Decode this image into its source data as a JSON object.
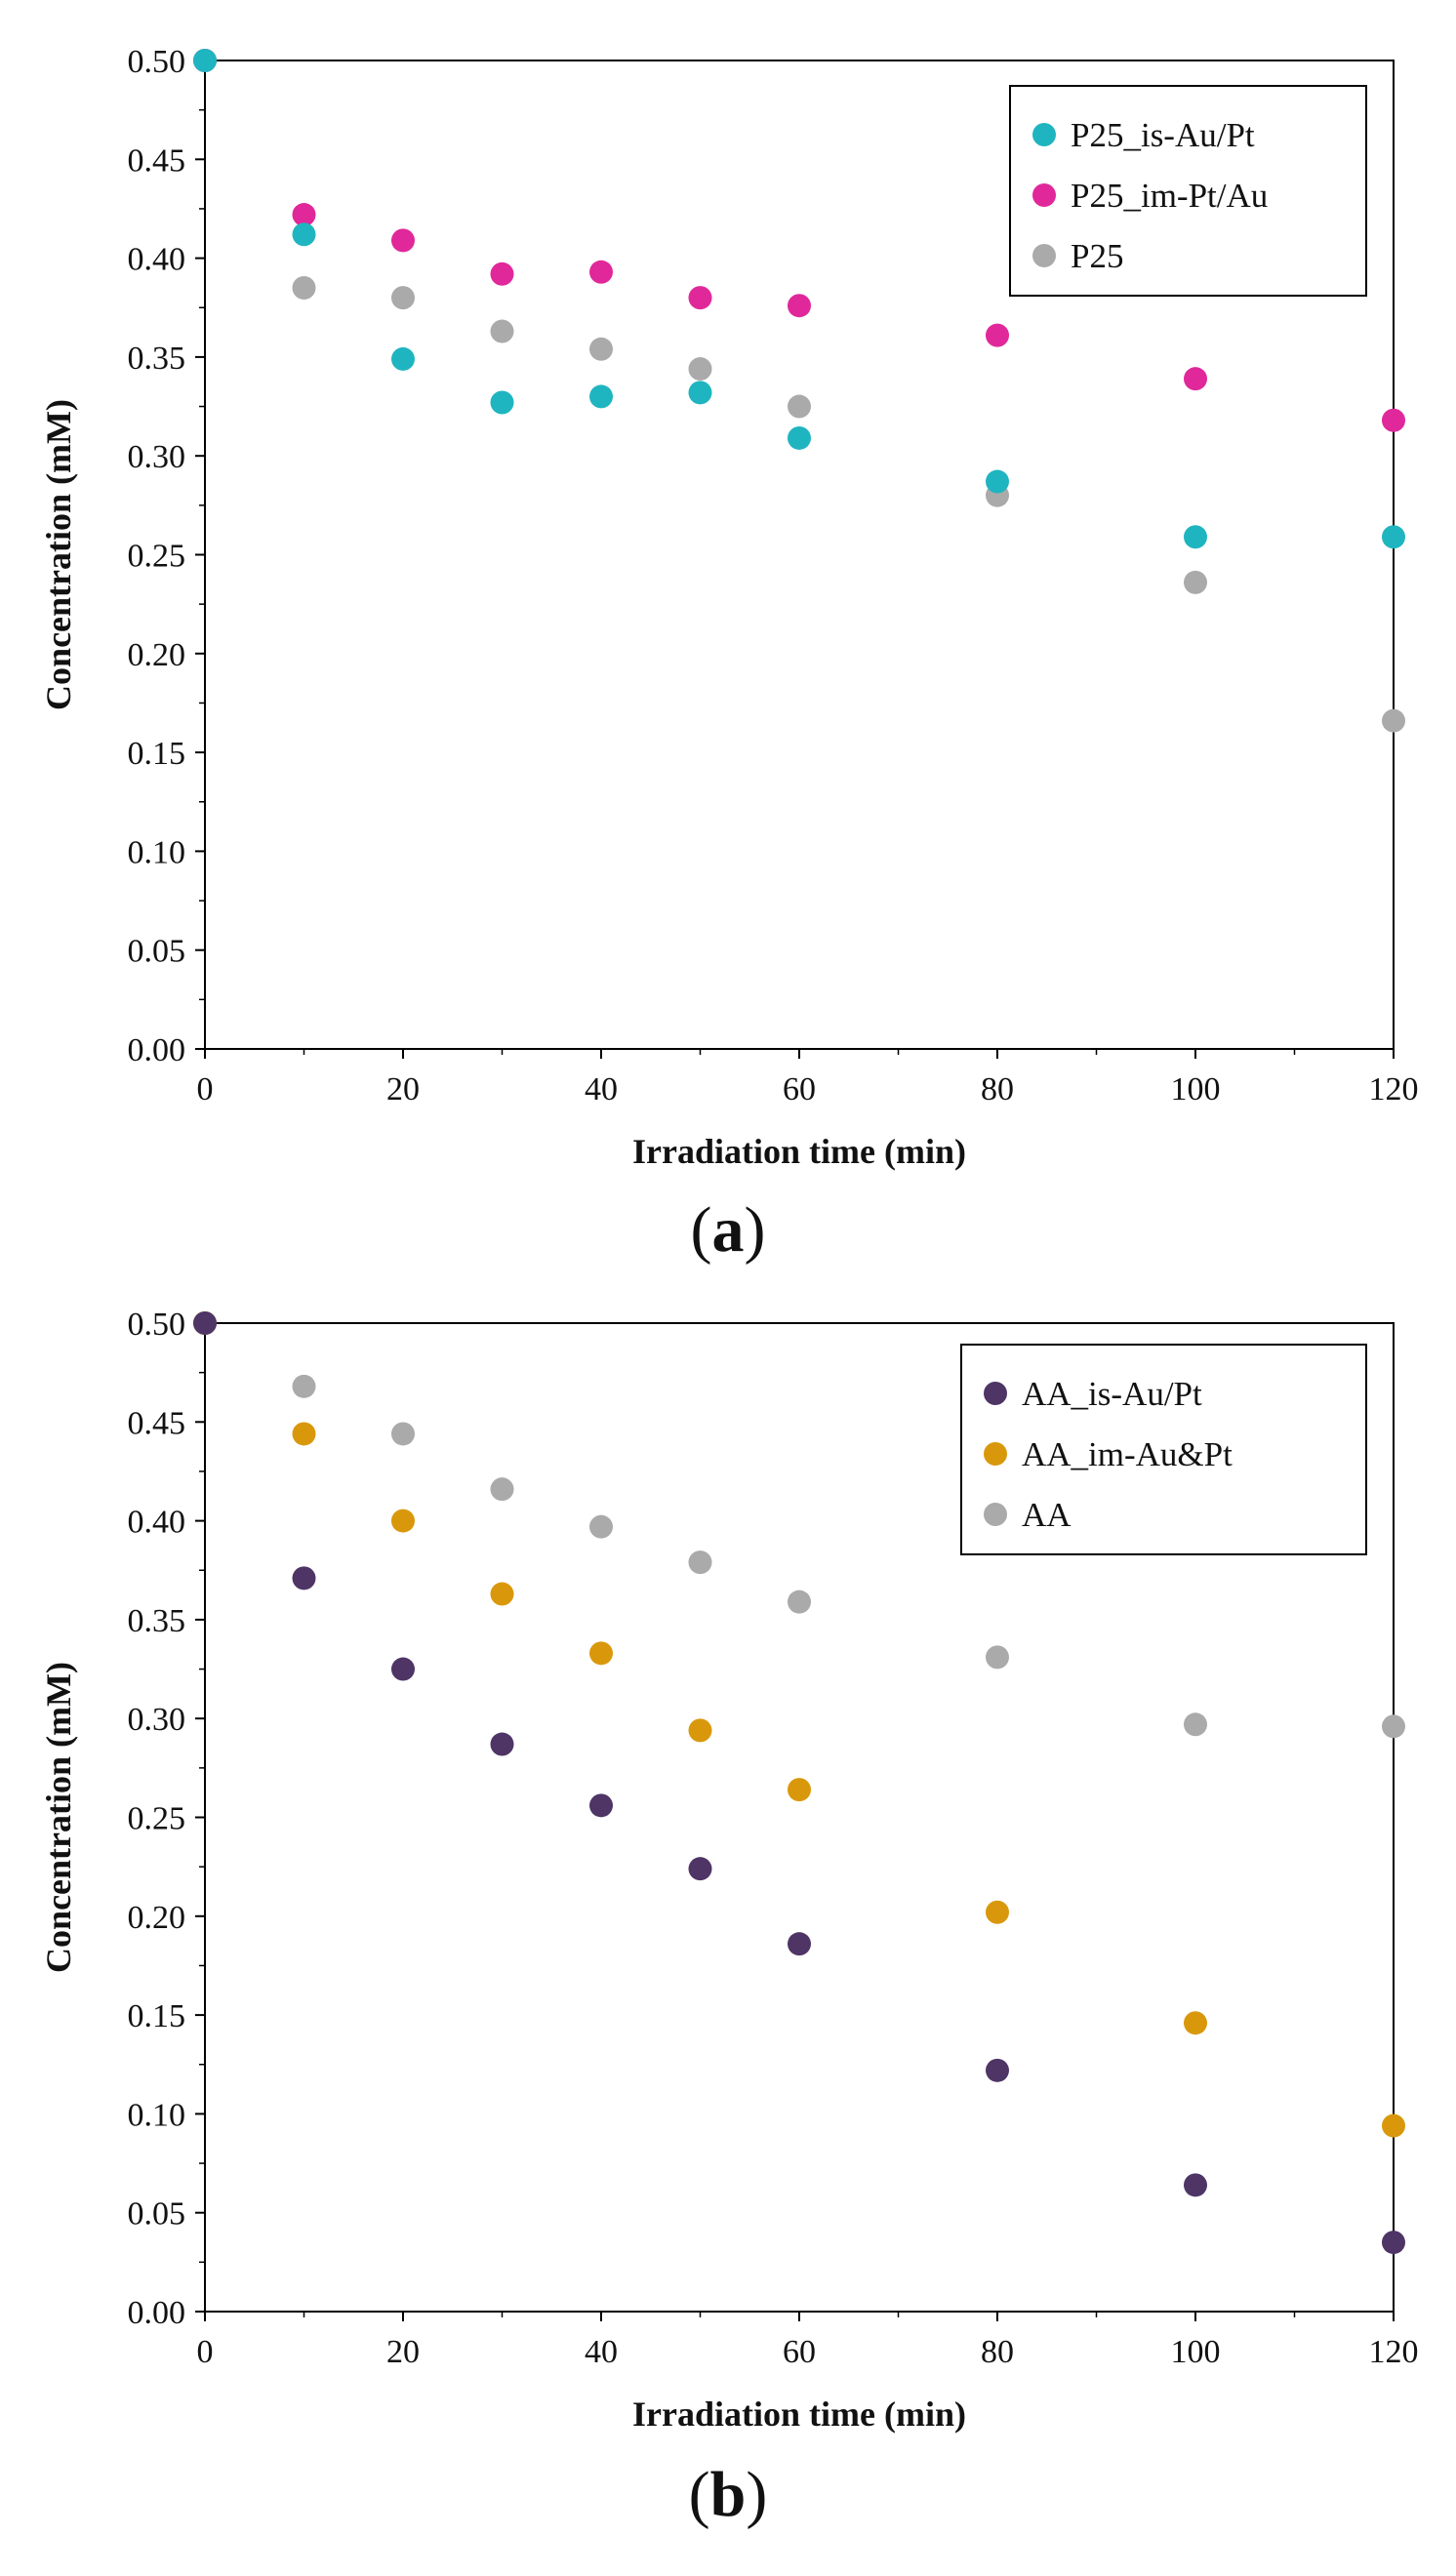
{
  "chart_data": [
    {
      "type": "scatter",
      "panel_label": "a",
      "title": "",
      "xlabel": "Irradiation time (min)",
      "ylabel": "Concentration (mM)",
      "xlim": [
        0,
        120
      ],
      "ylim": [
        0,
        0.5
      ],
      "x_major_ticks": [
        0,
        20,
        40,
        60,
        80,
        100,
        120
      ],
      "x_tick_labels": [
        "0",
        "20",
        "40",
        "60",
        "80",
        "100",
        "120"
      ],
      "y_major_ticks": [
        0,
        0.05,
        0.1,
        0.15,
        0.2,
        0.25,
        0.3,
        0.35,
        0.4,
        0.45,
        0.5
      ],
      "y_tick_labels": [
        "0.00",
        "0.05",
        "0.10",
        "0.15",
        "0.20",
        "0.25",
        "0.30",
        "0.35",
        "0.40",
        "0.45",
        "0.50"
      ],
      "grid": false,
      "legend_position": "top-right",
      "series": [
        {
          "name": "P25_is-Au/Pt",
          "color": "#1FB5C0",
          "x": [
            0,
            10,
            20,
            30,
            40,
            50,
            60,
            80,
            100,
            120
          ],
          "y": [
            0.5,
            0.412,
            0.349,
            0.327,
            0.33,
            0.332,
            0.309,
            0.287,
            0.259,
            0.259
          ]
        },
        {
          "name": "P25_im-Pt/Au",
          "color": "#E0289A",
          "x": [
            0,
            10,
            20,
            30,
            40,
            50,
            60,
            80,
            100,
            120
          ],
          "y": [
            0.5,
            0.422,
            0.409,
            0.392,
            0.393,
            0.38,
            0.376,
            0.361,
            0.339,
            0.318
          ]
        },
        {
          "name": "P25",
          "color": "#AAAAAA",
          "x": [
            0,
            10,
            20,
            30,
            40,
            50,
            60,
            80,
            100,
            120
          ],
          "y": [
            0.5,
            0.385,
            0.38,
            0.363,
            0.354,
            0.344,
            0.325,
            0.28,
            0.236,
            0.166
          ]
        }
      ]
    },
    {
      "type": "scatter",
      "panel_label": "b",
      "title": "",
      "xlabel": "Irradiation time (min)",
      "ylabel": "Concentration (mM)",
      "xlim": [
        0,
        120
      ],
      "ylim": [
        0,
        0.5
      ],
      "x_major_ticks": [
        0,
        20,
        40,
        60,
        80,
        100,
        120
      ],
      "x_tick_labels": [
        "0",
        "20",
        "40",
        "60",
        "80",
        "100",
        "120"
      ],
      "y_major_ticks": [
        0,
        0.05,
        0.1,
        0.15,
        0.2,
        0.25,
        0.3,
        0.35,
        0.4,
        0.45,
        0.5
      ],
      "y_tick_labels": [
        "0.00",
        "0.05",
        "0.10",
        "0.15",
        "0.20",
        "0.25",
        "0.30",
        "0.35",
        "0.40",
        "0.45",
        "0.50"
      ],
      "grid": false,
      "legend_position": "top-right",
      "series": [
        {
          "name": "AA_is-Au/Pt",
          "color": "#4E3566",
          "x": [
            0,
            10,
            20,
            30,
            40,
            50,
            60,
            80,
            100,
            120
          ],
          "y": [
            0.5,
            0.371,
            0.325,
            0.287,
            0.256,
            0.224,
            0.186,
            0.122,
            0.064,
            0.035
          ]
        },
        {
          "name": "AA_im-Au&Pt",
          "color": "#D9980C",
          "x": [
            0,
            10,
            20,
            30,
            40,
            50,
            60,
            80,
            100,
            120
          ],
          "y": [
            0.5,
            0.444,
            0.4,
            0.363,
            0.333,
            0.294,
            0.264,
            0.202,
            0.146,
            0.094
          ]
        },
        {
          "name": "AA",
          "color": "#AAAAAA",
          "x": [
            0,
            10,
            20,
            30,
            40,
            50,
            60,
            80,
            100,
            120
          ],
          "y": [
            0.5,
            0.468,
            0.444,
            0.416,
            0.397,
            0.379,
            0.359,
            0.331,
            0.297,
            0.296
          ]
        }
      ]
    }
  ]
}
